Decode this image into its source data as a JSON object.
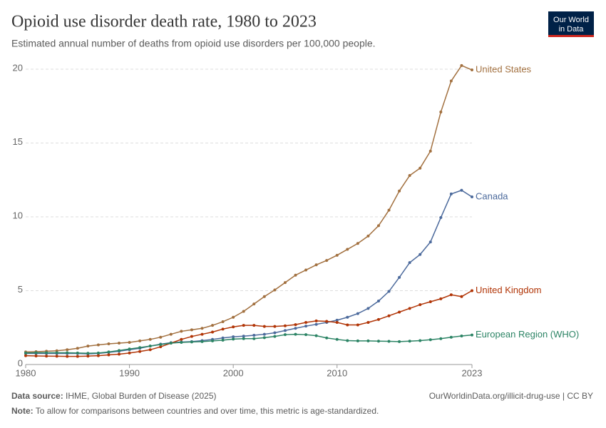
{
  "chart_data": {
    "type": "line",
    "title": "Opioid use disorder death rate, 1980 to 2023",
    "subtitle": "Estimated annual number of deaths from opioid use disorders per 100,000 people.",
    "logo": [
      "Our World",
      "in Data"
    ],
    "source_label": "Data source:",
    "source": "IHME, Global Burden of Disease (2025)",
    "url": "OurWorldinData.org/illicit-drug-use | CC BY",
    "note_label": "Note:",
    "note": "To allow for comparisons between countries and over time, this metric is age-standardized.",
    "x": [
      1980,
      1981,
      1982,
      1983,
      1984,
      1985,
      1986,
      1987,
      1988,
      1989,
      1990,
      1991,
      1992,
      1993,
      1994,
      1995,
      1996,
      1997,
      1998,
      1999,
      2000,
      2001,
      2002,
      2003,
      2004,
      2005,
      2006,
      2007,
      2008,
      2009,
      2010,
      2011,
      2012,
      2013,
      2014,
      2015,
      2016,
      2017,
      2018,
      2019,
      2020,
      2021,
      2022,
      2023
    ],
    "xlim": [
      1980,
      2023
    ],
    "xticks": [
      1980,
      1990,
      2000,
      2010,
      2023
    ],
    "ylim": [
      0,
      20
    ],
    "yticks": [
      0,
      5,
      10,
      15,
      20
    ],
    "grid": true,
    "series": [
      {
        "name": "United States",
        "color": "#a2703f",
        "values": [
          0.85,
          0.87,
          0.9,
          0.93,
          1.0,
          1.1,
          1.25,
          1.33,
          1.4,
          1.45,
          1.5,
          1.6,
          1.7,
          1.85,
          2.05,
          2.25,
          2.35,
          2.45,
          2.65,
          2.9,
          3.2,
          3.6,
          4.1,
          4.6,
          5.05,
          5.55,
          6.05,
          6.4,
          6.75,
          7.05,
          7.4,
          7.8,
          8.2,
          8.7,
          9.4,
          10.45,
          11.75,
          12.8,
          13.3,
          14.45,
          17.1,
          19.2,
          20.25,
          19.95
        ]
      },
      {
        "name": "Canada",
        "color": "#4c6a9c",
        "values": [
          0.75,
          0.75,
          0.75,
          0.75,
          0.75,
          0.75,
          0.72,
          0.75,
          0.82,
          0.9,
          1.0,
          1.1,
          1.25,
          1.38,
          1.48,
          1.52,
          1.55,
          1.62,
          1.7,
          1.8,
          1.88,
          1.92,
          1.98,
          2.05,
          2.15,
          2.3,
          2.45,
          2.6,
          2.72,
          2.85,
          3.0,
          3.2,
          3.45,
          3.8,
          4.3,
          4.95,
          5.9,
          6.9,
          7.45,
          8.3,
          9.95,
          11.55,
          11.8,
          11.35
        ]
      },
      {
        "name": "United Kingdom",
        "color": "#b13507",
        "values": [
          0.6,
          0.58,
          0.57,
          0.56,
          0.55,
          0.55,
          0.57,
          0.6,
          0.65,
          0.7,
          0.78,
          0.88,
          1.0,
          1.2,
          1.45,
          1.7,
          1.9,
          2.05,
          2.2,
          2.4,
          2.55,
          2.65,
          2.65,
          2.58,
          2.58,
          2.62,
          2.7,
          2.85,
          2.95,
          2.92,
          2.85,
          2.68,
          2.68,
          2.85,
          3.05,
          3.3,
          3.55,
          3.8,
          4.05,
          4.25,
          4.45,
          4.72,
          4.6,
          5.0
        ]
      },
      {
        "name": "European Region (WHO)",
        "color": "#2c8465",
        "values": [
          0.78,
          0.8,
          0.8,
          0.8,
          0.8,
          0.78,
          0.76,
          0.78,
          0.85,
          0.95,
          1.05,
          1.15,
          1.25,
          1.35,
          1.45,
          1.5,
          1.53,
          1.55,
          1.6,
          1.65,
          1.72,
          1.75,
          1.75,
          1.82,
          1.9,
          2.02,
          2.05,
          2.02,
          1.95,
          1.8,
          1.7,
          1.62,
          1.6,
          1.6,
          1.58,
          1.57,
          1.55,
          1.58,
          1.62,
          1.68,
          1.75,
          1.85,
          1.93,
          2.0
        ]
      }
    ]
  }
}
